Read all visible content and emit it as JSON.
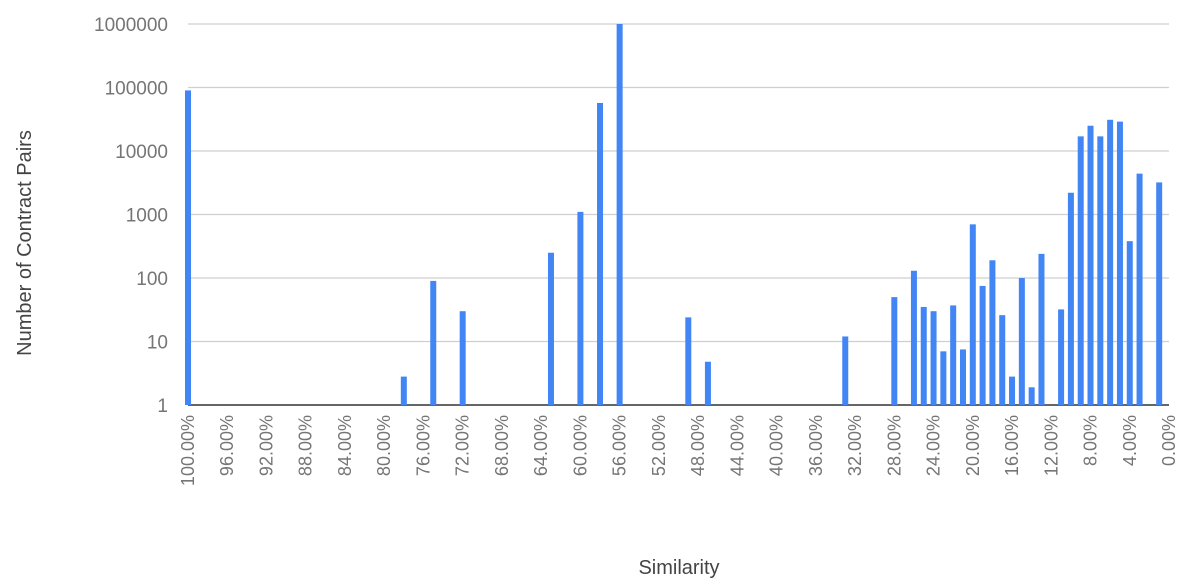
{
  "chart_data": {
    "type": "bar",
    "xlabel": "Similarity",
    "ylabel": "Number of Contract Pairs",
    "yscale": "log",
    "ylim": [
      1,
      1000000
    ],
    "yticks": [
      "1",
      "10",
      "100",
      "1000",
      "10000",
      "100000",
      "1000000"
    ],
    "xlim": [
      100,
      0
    ],
    "xticks": [
      "100.00%",
      "96.00%",
      "92.00%",
      "88.00%",
      "84.00%",
      "80.00%",
      "76.00%",
      "72.00%",
      "68.00%",
      "64.00%",
      "60.00%",
      "56.00%",
      "52.00%",
      "48.00%",
      "44.00%",
      "40.00%",
      "36.00%",
      "32.00%",
      "28.00%",
      "24.00%",
      "20.00%",
      "16.00%",
      "12.00%",
      "8.00%",
      "4.00%",
      "0.00%"
    ],
    "grid": true,
    "bar_color": "#4285F4",
    "points": [
      {
        "x": 100,
        "y": 90000
      },
      {
        "x": 78,
        "y": 2.8
      },
      {
        "x": 75,
        "y": 90
      },
      {
        "x": 72,
        "y": 30
      },
      {
        "x": 63,
        "y": 250
      },
      {
        "x": 60,
        "y": 1100
      },
      {
        "x": 58,
        "y": 57000
      },
      {
        "x": 56,
        "y": 1000000
      },
      {
        "x": 49,
        "y": 24
      },
      {
        "x": 47,
        "y": 4.8
      },
      {
        "x": 33,
        "y": 12
      },
      {
        "x": 28,
        "y": 50
      },
      {
        "x": 26,
        "y": 130
      },
      {
        "x": 25,
        "y": 35
      },
      {
        "x": 24,
        "y": 30
      },
      {
        "x": 23,
        "y": 7
      },
      {
        "x": 22,
        "y": 37
      },
      {
        "x": 21,
        "y": 7.5
      },
      {
        "x": 20,
        "y": 700
      },
      {
        "x": 19,
        "y": 75
      },
      {
        "x": 18,
        "y": 190
      },
      {
        "x": 17,
        "y": 26
      },
      {
        "x": 16,
        "y": 2.8
      },
      {
        "x": 15,
        "y": 100
      },
      {
        "x": 14,
        "y": 1.9
      },
      {
        "x": 13,
        "y": 240
      },
      {
        "x": 11,
        "y": 32
      },
      {
        "x": 10,
        "y": 2200
      },
      {
        "x": 9,
        "y": 17000
      },
      {
        "x": 8,
        "y": 25000
      },
      {
        "x": 7,
        "y": 17000
      },
      {
        "x": 6,
        "y": 31000
      },
      {
        "x": 5,
        "y": 29000
      },
      {
        "x": 4,
        "y": 380
      },
      {
        "x": 3,
        "y": 4400
      },
      {
        "x": 1,
        "y": 3200
      }
    ]
  }
}
